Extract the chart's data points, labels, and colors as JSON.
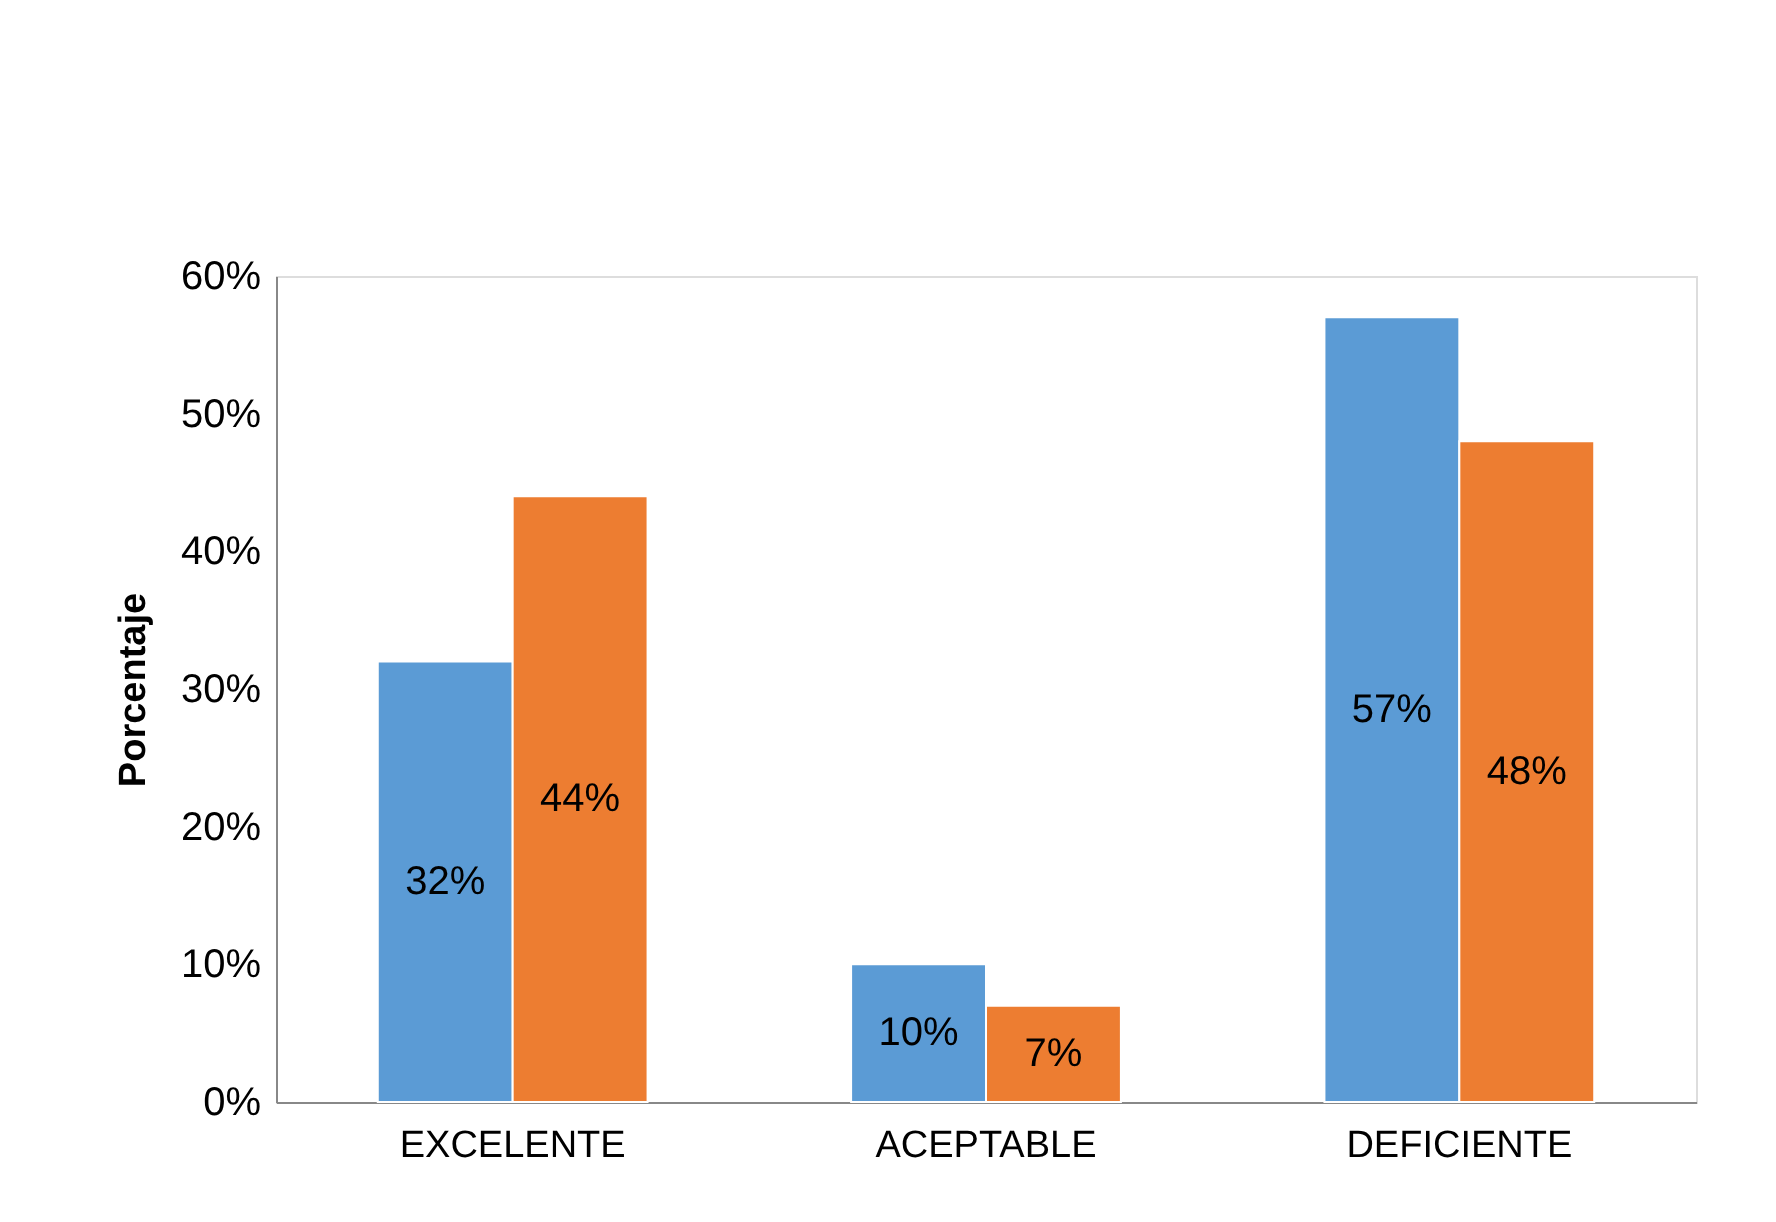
{
  "chart_data": {
    "type": "bar",
    "ylabel": "Porcentaje",
    "categories": [
      "EXCELENTE",
      "ACEPTABLE",
      "DEFICIENTE"
    ],
    "series": [
      {
        "color": "#5b9bd5",
        "values": [
          32,
          10,
          57
        ],
        "value_labels": [
          "32%",
          "10%",
          "57%"
        ]
      },
      {
        "color": "#ed7d31",
        "values": [
          44,
          7,
          48
        ],
        "value_labels": [
          "44%",
          "7%",
          "48%"
        ]
      }
    ],
    "ylim": [
      0,
      60
    ],
    "yticks": [
      {
        "value": 0,
        "label": "0%"
      },
      {
        "value": 10,
        "label": "10%"
      },
      {
        "value": 20,
        "label": "20%"
      },
      {
        "value": 30,
        "label": "30%"
      },
      {
        "value": 40,
        "label": "40%"
      },
      {
        "value": 50,
        "label": "50%"
      },
      {
        "value": 60,
        "label": "60%"
      }
    ],
    "grid": false,
    "legend": false
  }
}
